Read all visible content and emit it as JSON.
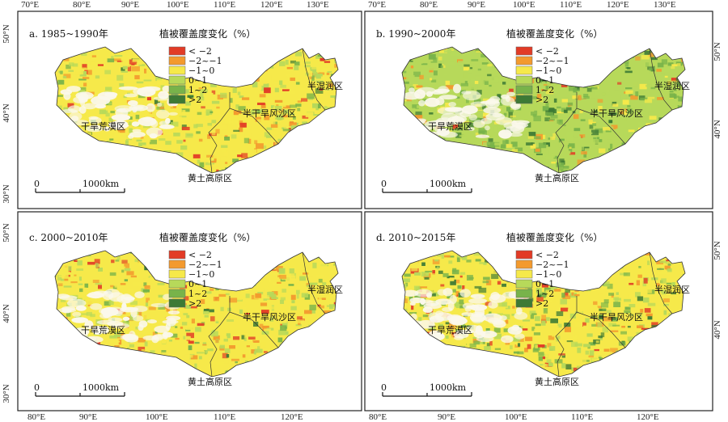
{
  "colors": {
    "lt_neg2": "#e23b26",
    "neg2_neg1": "#f39a2e",
    "neg1_0": "#f6e94a",
    "p0_1": "#b7d95a",
    "p1_2": "#78b34a",
    "gt2": "#3d7a35"
  },
  "legend": {
    "title": "植被覆盖度变化（%）",
    "items": [
      "< −2",
      "−2~−1",
      "−1~0",
      "0~1",
      "1~2",
      ">2"
    ]
  },
  "scale_bar": {
    "start": "0",
    "end": "1000km"
  },
  "regions": {
    "arid": "干旱荒漠区",
    "semi_arid": "半干旱风沙区",
    "loess": "黄土高原区",
    "semi_humid": "半湿润区"
  },
  "panels": [
    {
      "title": "a. 1985~1990年",
      "dominant": "yellow"
    },
    {
      "title": "b. 1990~2000年",
      "dominant": "green"
    },
    {
      "title": "c. 2000~2010年",
      "dominant": "yellow"
    },
    {
      "title": "d. 2010~2015年",
      "dominant": "mixed"
    }
  ],
  "axes": {
    "top_lon": [
      "70°E",
      "80°E",
      "90°E",
      "100°E",
      "110°E",
      "120°E",
      "130°E"
    ],
    "bottom_lon": [
      "80°E",
      "90°E",
      "100°E",
      "110°E",
      "120°E"
    ],
    "left_lat_top": [
      "50°N",
      "40°N",
      "30°N"
    ],
    "left_lat_bottom": [
      "50°N",
      "40°N",
      "30°N"
    ],
    "right_lat_top": [
      "50°N",
      "40°N"
    ],
    "right_lat_bottom": [
      "50°N",
      "40°N"
    ]
  }
}
